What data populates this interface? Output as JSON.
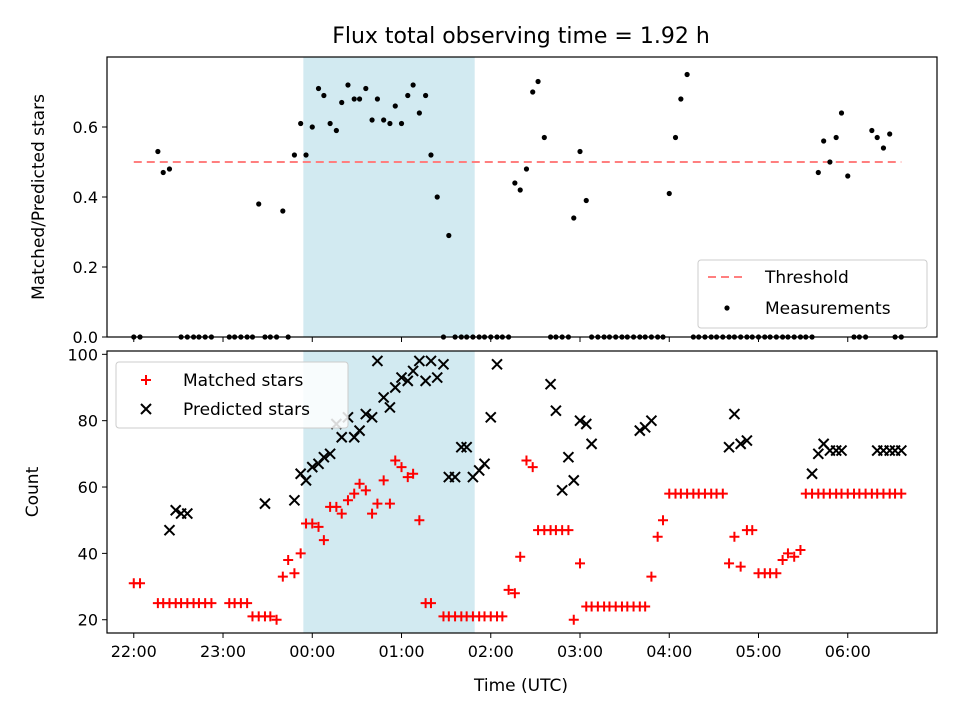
{
  "chart_data": [
    {
      "type": "scatter",
      "title": "Flux total observing time = 1.92 h",
      "xlabel": "",
      "ylabel": "Matched/Predicted stars",
      "ylim": [
        0,
        0.8
      ],
      "yticks": [
        0.0,
        0.2,
        0.4,
        0.6
      ],
      "ytick_labels": [
        "0.0",
        "0.2",
        "0.4",
        "0.6"
      ],
      "xlim": [
        -2.3,
        7.0
      ],
      "highlight_span": [
        -0.1,
        1.82
      ],
      "highlight_color": "#add8e6",
      "legend_position": "lower-right",
      "series": [
        {
          "name": "Threshold",
          "kind": "line",
          "color": "#ff7f7f",
          "x": [
            -2.0,
            6.6
          ],
          "y": [
            0.5,
            0.5
          ]
        },
        {
          "name": "Measurements",
          "kind": "points",
          "color": "#000000",
          "x": [
            -2.0,
            -1.93,
            -1.73,
            -1.67,
            -1.6,
            -1.47,
            -1.4,
            -1.33,
            -1.27,
            -1.2,
            -1.13,
            -0.93,
            -0.87,
            -0.8,
            -0.73,
            -0.67,
            -0.6,
            -0.53,
            -0.47,
            -0.4,
            -0.33,
            -0.27,
            -0.2,
            -0.13,
            -0.07,
            0.0,
            0.07,
            0.13,
            0.2,
            0.27,
            0.33,
            0.4,
            0.47,
            0.53,
            0.6,
            0.67,
            0.73,
            0.8,
            0.87,
            0.93,
            1.0,
            1.07,
            1.13,
            1.2,
            1.27,
            1.33,
            1.4,
            1.47,
            1.53,
            1.6,
            1.67,
            1.73,
            1.8,
            1.87,
            1.93,
            2.0,
            2.07,
            2.13,
            2.2,
            2.27,
            2.33,
            2.4,
            2.47,
            2.53,
            2.6,
            2.67,
            2.73,
            2.8,
            2.87,
            2.93,
            3.0,
            3.07,
            3.13,
            3.2,
            3.27,
            3.33,
            3.4,
            3.47,
            3.53,
            3.6,
            3.67,
            3.73,
            3.8,
            3.87,
            3.93,
            4.0,
            4.07,
            4.13,
            4.2,
            4.27,
            4.33,
            4.4,
            4.47,
            4.53,
            4.6,
            4.67,
            4.73,
            4.8,
            4.87,
            4.93,
            5.0,
            5.07,
            5.13,
            5.2,
            5.27,
            5.33,
            5.4,
            5.47,
            5.53,
            5.6,
            5.67,
            5.73,
            5.8,
            5.87,
            5.93,
            6.0,
            6.07,
            6.13,
            6.2,
            6.27,
            6.33,
            6.4,
            6.47,
            6.53,
            6.6
          ],
          "y": [
            0.0,
            0.0,
            0.53,
            0.47,
            0.48,
            0.0,
            0.0,
            0.0,
            0.0,
            0.0,
            0.0,
            0.0,
            0.0,
            0.0,
            0.0,
            0.0,
            0.38,
            0.0,
            0.0,
            0.0,
            0.36,
            0.0,
            0.52,
            0.61,
            0.52,
            0.6,
            0.71,
            0.69,
            0.61,
            0.59,
            0.67,
            0.72,
            0.68,
            0.68,
            0.71,
            0.62,
            0.68,
            0.62,
            0.61,
            0.66,
            0.61,
            0.69,
            0.72,
            0.64,
            0.69,
            0.52,
            0.4,
            0.0,
            0.29,
            0.0,
            0.0,
            0.0,
            0.0,
            0.0,
            0.0,
            0.0,
            0.0,
            0.0,
            0.0,
            0.44,
            0.42,
            0.48,
            0.7,
            0.73,
            0.57,
            0.0,
            0.0,
            0.0,
            0.0,
            0.34,
            0.53,
            0.39,
            0.0,
            0.0,
            0.0,
            0.0,
            0.0,
            0.0,
            0.0,
            0.0,
            0.0,
            0.0,
            0.0,
            0.0,
            0.0,
            0.41,
            0.57,
            0.68,
            0.75,
            0.0,
            0.0,
            0.0,
            0.0,
            0.0,
            0.0,
            0.0,
            0.0,
            0.0,
            0.0,
            0.0,
            0.0,
            0.0,
            0.0,
            0.0,
            0.0,
            0.0,
            0.0,
            0.0,
            0.0,
            0.0,
            0.47,
            0.56,
            0.5,
            0.57,
            0.64,
            0.46,
            0.0,
            0.0,
            0.0,
            0.59,
            0.57,
            0.54,
            0.58,
            0.0,
            0.0
          ]
        }
      ]
    },
    {
      "type": "scatter",
      "title": "",
      "xlabel": "Time (UTC)",
      "ylabel": "Count",
      "ylim": [
        16,
        101
      ],
      "yticks": [
        20,
        40,
        60,
        80,
        100
      ],
      "ytick_labels": [
        "20",
        "40",
        "60",
        "80",
        "100"
      ],
      "xlim": [
        -2.3,
        7.0
      ],
      "xticks": [
        -2,
        -1,
        0,
        1,
        2,
        3,
        4,
        5,
        6
      ],
      "xtick_labels": [
        "22:00",
        "23:00",
        "00:00",
        "01:00",
        "02:00",
        "03:00",
        "04:00",
        "05:00",
        "06:00"
      ],
      "highlight_span": [
        -0.1,
        1.82
      ],
      "highlight_color": "#add8e6",
      "legend_position": "upper-left",
      "series": [
        {
          "name": "Matched stars",
          "kind": "plus",
          "color": "#ff0000",
          "x": [
            -2.0,
            -1.93,
            -1.73,
            -1.67,
            -1.6,
            -1.53,
            -1.47,
            -1.4,
            -1.33,
            -1.27,
            -1.2,
            -1.13,
            -0.93,
            -0.87,
            -0.8,
            -0.73,
            -0.67,
            -0.6,
            -0.53,
            -0.47,
            -0.4,
            -0.33,
            -0.27,
            -0.2,
            -0.13,
            -0.07,
            0.0,
            0.07,
            0.13,
            0.2,
            0.27,
            0.33,
            0.4,
            0.47,
            0.53,
            0.6,
            0.67,
            0.73,
            0.8,
            0.87,
            0.93,
            1.0,
            1.07,
            1.13,
            1.2,
            1.27,
            1.33,
            1.47,
            1.53,
            1.6,
            1.67,
            1.73,
            1.8,
            1.87,
            1.93,
            2.0,
            2.07,
            2.13,
            2.2,
            2.27,
            2.33,
            2.4,
            2.47,
            2.53,
            2.6,
            2.67,
            2.73,
            2.8,
            2.87,
            2.93,
            3.0,
            3.07,
            3.13,
            3.2,
            3.27,
            3.33,
            3.4,
            3.47,
            3.53,
            3.6,
            3.67,
            3.73,
            3.8,
            3.87,
            3.93,
            4.0,
            4.07,
            4.13,
            4.2,
            4.27,
            4.33,
            4.4,
            4.47,
            4.53,
            4.6,
            4.67,
            4.73,
            4.8,
            4.87,
            4.93,
            5.0,
            5.07,
            5.13,
            5.2,
            5.27,
            5.33,
            5.4,
            5.47,
            5.53,
            5.6,
            5.67,
            5.73,
            5.8,
            5.87,
            5.93,
            6.0,
            6.07,
            6.13,
            6.2,
            6.27,
            6.33,
            6.4,
            6.47,
            6.53,
            6.6
          ],
          "y": [
            31,
            31,
            25,
            25,
            25,
            25,
            25,
            25,
            25,
            25,
            25,
            25,
            25,
            25,
            25,
            25,
            21,
            21,
            21,
            21,
            20,
            33,
            38,
            34,
            40,
            49,
            49,
            48,
            44,
            54,
            54,
            52,
            56,
            58,
            61,
            59,
            52,
            55,
            62,
            55,
            68,
            66,
            63,
            64,
            50,
            25,
            25,
            21,
            21,
            21,
            21,
            21,
            21,
            21,
            21,
            21,
            21,
            21,
            29,
            28,
            39,
            68,
            66,
            47,
            47,
            47,
            47,
            47,
            47,
            20,
            37,
            24,
            24,
            24,
            24,
            24,
            24,
            24,
            24,
            24,
            24,
            24,
            33,
            45,
            50,
            58,
            58,
            58,
            58,
            58,
            58,
            58,
            58,
            58,
            58,
            37,
            45,
            36,
            47,
            47,
            34,
            34,
            34,
            34,
            38,
            40,
            39,
            41,
            58,
            58,
            58,
            58,
            58,
            58,
            58,
            58,
            58,
            58,
            58,
            58,
            58,
            58,
            58,
            58,
            58
          ],
          "x_note": "",
          "y_note": ""
        },
        {
          "name": "Predicted stars",
          "kind": "cross",
          "color": "#000000",
          "x": [
            -1.6,
            -1.53,
            -1.47,
            -1.4,
            -0.53,
            -0.2,
            -0.13,
            -0.07,
            0.0,
            0.07,
            0.13,
            0.2,
            0.27,
            0.33,
            0.4,
            0.47,
            0.53,
            0.6,
            0.67,
            0.73,
            0.8,
            0.87,
            0.93,
            1.0,
            1.07,
            1.13,
            1.2,
            1.27,
            1.33,
            1.4,
            1.47,
            1.53,
            1.6,
            1.67,
            1.73,
            1.8,
            1.87,
            1.93,
            2.0,
            2.07,
            2.67,
            2.73,
            2.8,
            2.87,
            2.93,
            3.0,
            3.07,
            3.13,
            3.67,
            3.73,
            3.8,
            4.67,
            4.73,
            4.8,
            4.87,
            5.6,
            5.67,
            5.73,
            5.8,
            5.87,
            5.93,
            6.33,
            6.4,
            6.47,
            6.53,
            6.6
          ],
          "y": [
            47,
            53,
            52,
            52,
            55,
            56,
            64,
            62,
            66,
            67,
            69,
            70,
            79,
            75,
            81,
            75,
            77,
            82,
            81,
            98,
            87,
            84,
            90,
            93,
            92,
            95,
            98,
            92,
            98,
            93,
            97,
            63,
            63,
            72,
            72,
            63,
            65,
            67,
            81,
            97,
            91,
            83,
            59,
            69,
            62,
            80,
            79,
            73,
            77,
            78,
            80,
            72,
            82,
            73,
            74,
            64,
            70,
            73,
            71,
            71,
            71,
            71,
            71,
            71,
            71,
            71
          ]
        }
      ]
    }
  ]
}
